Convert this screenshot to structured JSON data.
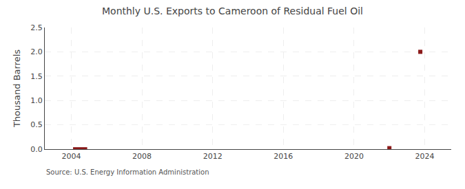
{
  "chart_data": {
    "type": "bar",
    "title": "Monthly U.S. Exports to Cameroon of Residual Fuel Oil",
    "y_label": "Thousand Barrels",
    "annotations": [
      "Source: U.S. Energy Information Administration"
    ],
    "series": [
      {
        "type": "bar",
        "color": "#8b1a1a",
        "x": [
          2004.5
        ],
        "values": [
          0.04
        ]
      },
      {
        "type": "scatter",
        "marker": "square",
        "color": "#8b1a1a",
        "x": [
          2022.0,
          2023.75
        ],
        "values": [
          0.02,
          2.0
        ]
      }
    ],
    "xlim": [
      2002.5,
      2025.5
    ],
    "xticks": [
      2004,
      2008,
      2012,
      2016,
      2020,
      2024
    ],
    "ylim": [
      0.0,
      2.5
    ],
    "yticks": [
      {
        "value": 0.0,
        "label": "0.0"
      },
      0.5,
      {
        "value": 1.0,
        "label": "1.0"
      },
      1.5,
      {
        "value": 2.0,
        "label": "2.0"
      },
      2.5
    ],
    "grid": true
  }
}
